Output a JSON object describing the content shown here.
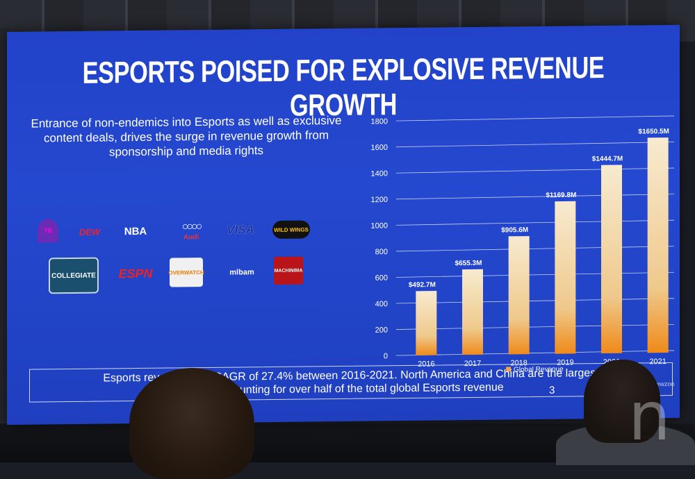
{
  "slide": {
    "title": "ESPORTS POISED FOR EXPLOSIVE REVENUE GROWTH",
    "subtitle": "Entrance of non-endemics into Esports as well as exclusive content deals, drives the surge in revenue growth from sponsorship and media rights",
    "bottom_text_line1": "Esports revenue w          t a CAGR of 27.4% between 2016-2021. North America and China are the largest",
    "bottom_text_line2": "ets accounting for over half of the total global Esports revenue",
    "page_number": "3",
    "source": "Newzoo"
  },
  "logos": {
    "taco": "TB",
    "dew": "DEW",
    "nba": "NBA",
    "audi_rings": "○○○○",
    "audi": "Audi",
    "visa": "VISA",
    "bww": "WILD WINGS",
    "collegiate": "COLLEGIATE",
    "espn": "ESPN",
    "overwatch": "OVERWATCH",
    "mlbam": "mlbam",
    "machinima": "MACHINIMA"
  },
  "watermark": "n",
  "colors": {
    "screen_blue": "#2448cf",
    "bar_top": "#f6e3b8",
    "bar_bottom": "#f08a1c",
    "grid": "#c8d2f5"
  },
  "chart_data": {
    "type": "bar",
    "categories": [
      "2016",
      "2017",
      "2018",
      "2019",
      "2020",
      "2021"
    ],
    "values": [
      492.7,
      655.3,
      905.6,
      1169.8,
      1444.7,
      1650.5
    ],
    "data_labels": [
      "$492.7M",
      "$655.3M",
      "$905.6M",
      "$1169.8M",
      "$1444.7M",
      "$1650.5M"
    ],
    "legend": [
      "Global Revenue"
    ],
    "legend_position": "bottom",
    "ylim": [
      0,
      1800
    ],
    "yticks": [
      0,
      200,
      400,
      600,
      800,
      1000,
      1200,
      1400,
      1600,
      1800
    ],
    "grid": true
  }
}
